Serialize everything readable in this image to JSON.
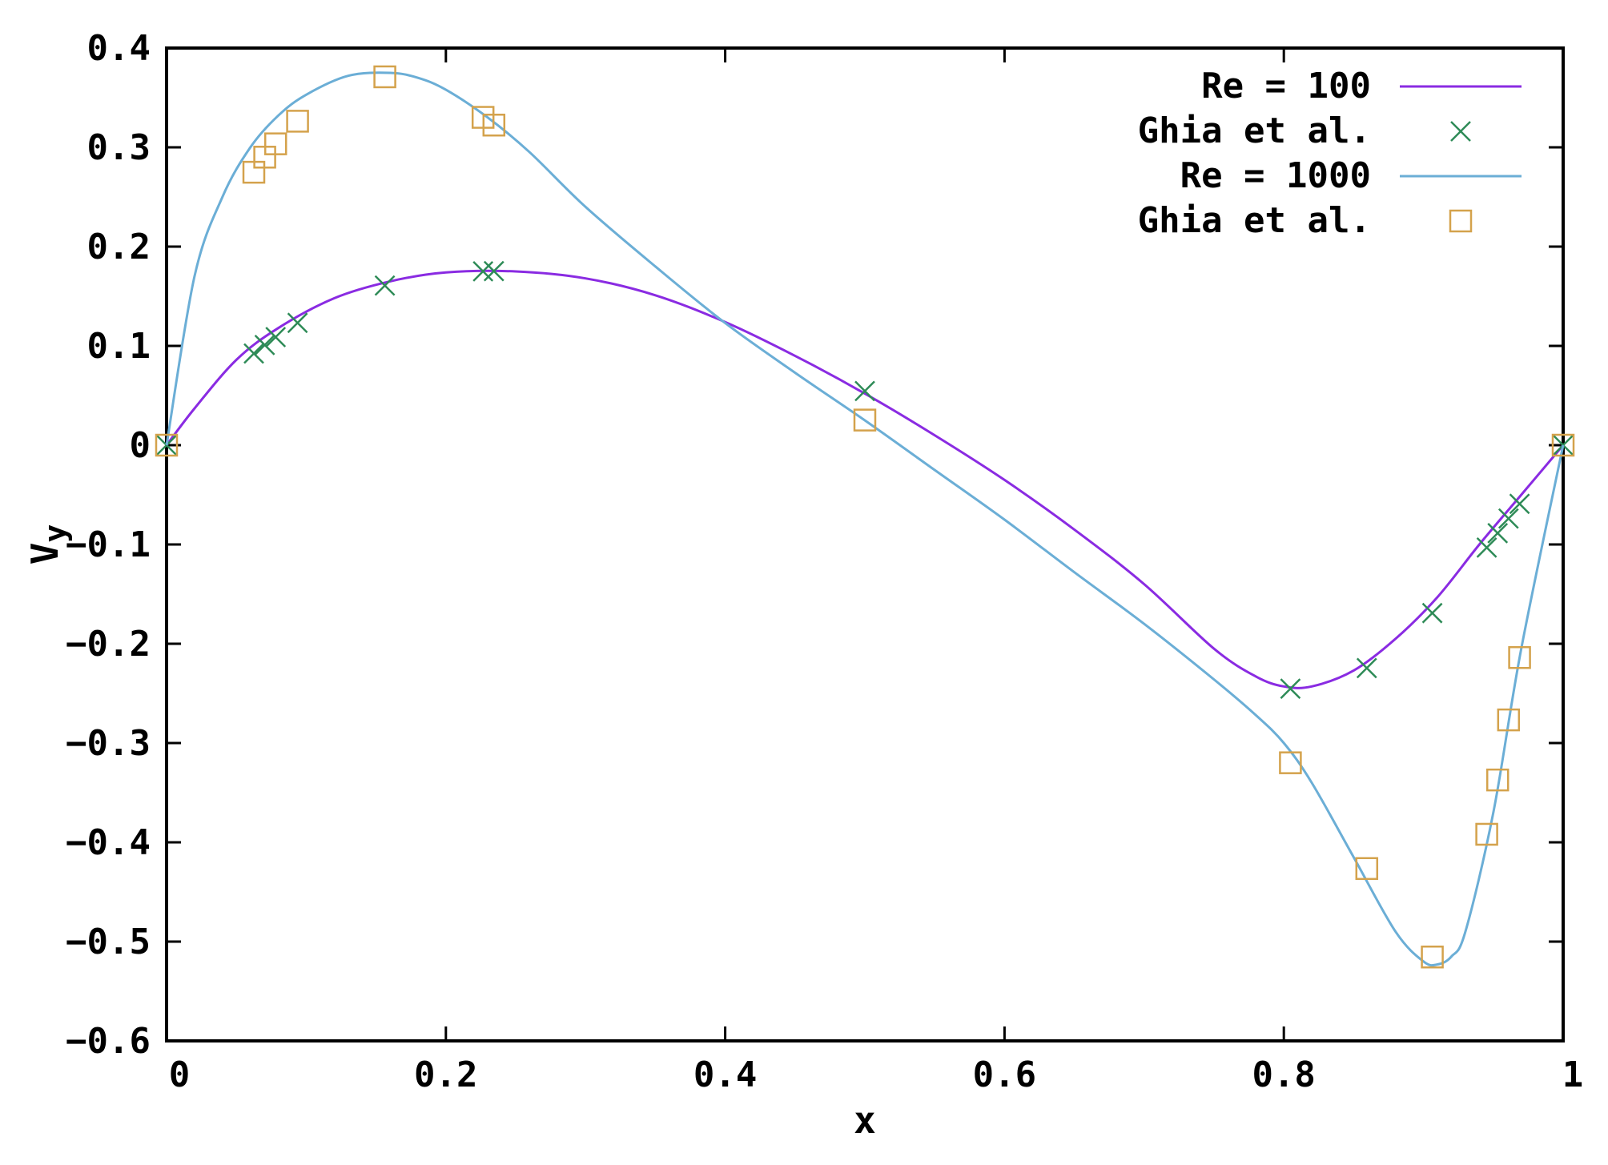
{
  "chart_data": {
    "type": "line",
    "xlabel": "x",
    "ylabel": "V",
    "ylabel_subscript": "y",
    "xlim": [
      0,
      1
    ],
    "ylim": [
      -0.6,
      0.4
    ],
    "grid": false,
    "legend_position": "top-right",
    "x_ticks": [
      "0",
      "0.2",
      "0.4",
      "0.6",
      "0.8",
      "1"
    ],
    "y_ticks": [
      "0.4",
      "0.3",
      "0.2",
      "0.1",
      "0",
      "-0.1",
      "-0.2",
      "-0.3",
      "-0.4",
      "-0.5",
      "-0.6"
    ],
    "colors": {
      "re100": "#8a2be2",
      "re100_markers": "#2e8b57",
      "re1000": "#6baed6",
      "re1000_markers": "#d4a24c"
    },
    "series": [
      {
        "name": "Re = 100",
        "kind": "line",
        "color": "#8a2be2",
        "x": [
          0,
          0.02,
          0.05,
          0.08,
          0.12,
          0.16,
          0.2,
          0.25,
          0.3,
          0.35,
          0.4,
          0.45,
          0.5,
          0.55,
          0.6,
          0.65,
          0.7,
          0.75,
          0.78,
          0.8,
          0.82,
          0.85,
          0.88,
          0.91,
          0.94,
          0.97,
          1.0
        ],
        "y": [
          0,
          0.037,
          0.086,
          0.118,
          0.148,
          0.165,
          0.174,
          0.175,
          0.168,
          0.151,
          0.124,
          0.09,
          0.052,
          0.01,
          -0.035,
          -0.085,
          -0.14,
          -0.205,
          -0.233,
          -0.243,
          -0.243,
          -0.227,
          -0.195,
          -0.153,
          -0.1,
          -0.05,
          0
        ]
      },
      {
        "name": "Ghia et al.",
        "kind": "markers",
        "marker": "cross",
        "color": "#2e8b57",
        "x": [
          0,
          0.0625,
          0.0703,
          0.0781,
          0.0938,
          0.1563,
          0.2266,
          0.2344,
          0.5,
          0.8047,
          0.8594,
          0.9063,
          0.9453,
          0.9531,
          0.9609,
          0.9688,
          1.0
        ],
        "y": [
          0,
          0.0923,
          0.1009,
          0.1089,
          0.1232,
          0.1608,
          0.1751,
          0.1753,
          0.0545,
          -0.2453,
          -0.2245,
          -0.1691,
          -0.1031,
          -0.0886,
          -0.0739,
          -0.0591,
          0
        ]
      },
      {
        "name": "Re = 1000",
        "kind": "line",
        "color": "#6baed6",
        "x": [
          0,
          0.02,
          0.04,
          0.06,
          0.08,
          0.1,
          0.13,
          0.16,
          0.18,
          0.2,
          0.23,
          0.26,
          0.3,
          0.35,
          0.4,
          0.45,
          0.5,
          0.55,
          0.6,
          0.65,
          0.7,
          0.75,
          0.78,
          0.8,
          0.82,
          0.85,
          0.88,
          0.9,
          0.91,
          0.92,
          0.93,
          0.95,
          0.97,
          1.0
        ],
        "y": [
          0,
          0.17,
          0.25,
          0.3,
          0.332,
          0.353,
          0.372,
          0.375,
          0.37,
          0.358,
          0.33,
          0.295,
          0.24,
          0.18,
          0.123,
          0.073,
          0.025,
          -0.025,
          -0.075,
          -0.128,
          -0.18,
          -0.236,
          -0.272,
          -0.3,
          -0.34,
          -0.415,
          -0.49,
          -0.52,
          -0.523,
          -0.515,
          -0.49,
          -0.37,
          -0.205,
          0
        ]
      },
      {
        "name": "Ghia et al.",
        "kind": "markers",
        "marker": "square",
        "color": "#d4a24c",
        "x": [
          0,
          0.0625,
          0.0703,
          0.0781,
          0.0938,
          0.1563,
          0.2266,
          0.2344,
          0.5,
          0.8047,
          0.8594,
          0.9063,
          0.9453,
          0.9531,
          0.9609,
          0.9688,
          1.0
        ],
        "y": [
          0,
          0.2749,
          0.2901,
          0.3035,
          0.3263,
          0.371,
          0.3302,
          0.3224,
          0.0253,
          -0.3199,
          -0.4264,
          -0.5155,
          -0.3919,
          -0.3372,
          -0.2767,
          -0.2139,
          0
        ]
      }
    ]
  }
}
